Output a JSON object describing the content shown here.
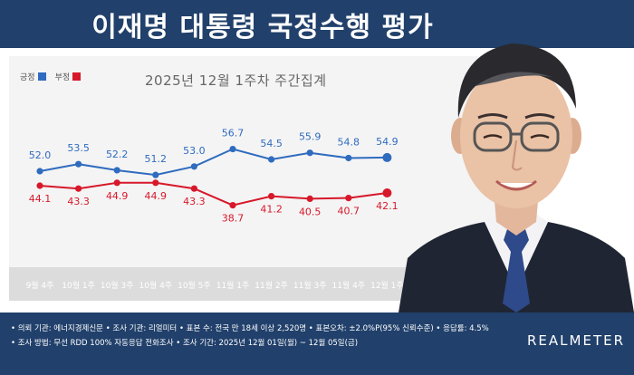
{
  "header": {
    "title": "이재명 대통령 국정수행 평가"
  },
  "legend": [
    {
      "label": "긍정",
      "color": "#2f6bbf"
    },
    {
      "label": "부정",
      "color": "#d7182a"
    }
  ],
  "chart_data": {
    "type": "line",
    "title": "2025년 12월 1주차 주간집계",
    "categories": [
      "9월 4주",
      "10월 1주",
      "10월 3주",
      "10월 4주",
      "10월 5주",
      "11월 1주",
      "11월 2주",
      "11월 3주",
      "11월 4주",
      "12월 1주"
    ],
    "series": [
      {
        "name": "긍정",
        "color": "#2f6bbf",
        "values": [
          52.0,
          53.5,
          52.2,
          51.2,
          53.0,
          56.7,
          54.5,
          55.9,
          54.8,
          54.9
        ]
      },
      {
        "name": "부정",
        "color": "#d7182a",
        "values": [
          44.1,
          43.3,
          44.9,
          44.9,
          43.3,
          38.7,
          41.2,
          40.5,
          40.7,
          42.1
        ]
      }
    ],
    "value_labels": {
      "긍정": [
        "52.0",
        "53.5",
        "52.2",
        "51.2",
        "53.0",
        "56.7",
        "54.5",
        "55.9",
        "54.8",
        "54.9"
      ],
      "부정": [
        "44.1",
        "43.3",
        "44.9",
        "44.9",
        "43.3",
        "38.7",
        "41.2",
        "40.5",
        "40.7",
        "42.1"
      ]
    },
    "ylim": [
      35,
      60
    ],
    "grid": false,
    "legend_position": "top-left"
  },
  "footer": {
    "line1": "• 의뢰 기관: 에너지경제신문 • 조사 기관: 리얼미터 • 표본 수: 전국 만 18세 이상 2,520명 • 표본오차: ±2.0%P(95% 신뢰수준) • 응답률: 4.5%",
    "line2": "• 조사 방법: 무선 RDD 100% 자동응답 전화조사 • 조사 기간: 2025년 12월 01일(월) ~ 12월 05일(금)",
    "brand": "REALMETER"
  }
}
